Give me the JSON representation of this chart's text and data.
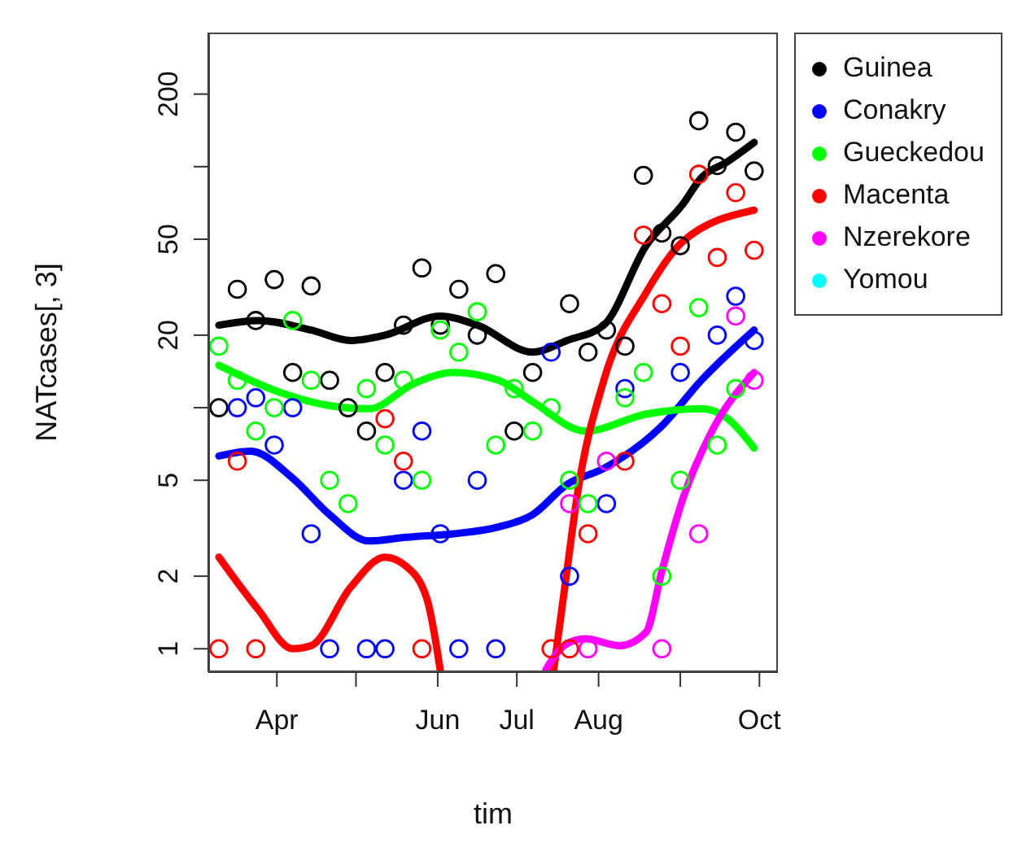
{
  "chart_data": {
    "type": "scatter",
    "xlabel": "tim",
    "ylabel": "NATcases[, 3]",
    "log": "y",
    "marker": "circle",
    "legend": "right",
    "xlim": [
      "--03-06",
      "--10-08"
    ],
    "xticks": [
      {
        "value": "--04-01",
        "label": "Apr"
      },
      {
        "value": "--05-01",
        "label": null
      },
      {
        "value": "--06-01",
        "label": "Jun"
      },
      {
        "value": "--07-01",
        "label": "Jul"
      },
      {
        "value": "--08-01",
        "label": "Aug"
      },
      {
        "value": "--09-01",
        "label": null
      },
      {
        "value": "--10-01",
        "label": "Oct"
      }
    ],
    "ylim": [
      0.8,
      360
    ],
    "yticks": [
      1,
      2,
      5,
      {
        "value": 10,
        "label": null
      },
      20,
      50,
      {
        "value": 100,
        "label": null
      },
      200
    ],
    "x": [
      "--03-10",
      "--03-17",
      "--03-24",
      "--03-31",
      "--04-07",
      "--04-14",
      "--04-21",
      "--04-28",
      "--05-05",
      "--05-12",
      "--05-19",
      "--05-26",
      "--06-02",
      "--06-09",
      "--06-16",
      "--06-23",
      "--06-30",
      "--07-07",
      "--07-14",
      "--07-21",
      "--07-28",
      "--08-04",
      "--08-11",
      "--08-18",
      "--08-25",
      "--09-01",
      "--09-08",
      "--09-15",
      "--09-22",
      "--09-29"
    ],
    "series": [
      {
        "name": "Guinea",
        "color": "#000000",
        "values": [
          10,
          31,
          23,
          34,
          14,
          32,
          13,
          10,
          8,
          14,
          22,
          38,
          22,
          31,
          20,
          36,
          8,
          14,
          null,
          27,
          17,
          21,
          18,
          92,
          53,
          47,
          155,
          101,
          139,
          96
        ]
      },
      {
        "name": "Conakry",
        "color": "#0000ff",
        "values": [
          null,
          10,
          11,
          7,
          10,
          3,
          1,
          null,
          1,
          1,
          5,
          8,
          3,
          1,
          5,
          1,
          null,
          null,
          17,
          2,
          null,
          4,
          12,
          null,
          null,
          14,
          null,
          20,
          29,
          19
        ]
      },
      {
        "name": "Gueckedou",
        "color": "#00ff00",
        "values": [
          18,
          13,
          8,
          10,
          23,
          13,
          5,
          4,
          12,
          7,
          13,
          5,
          21,
          17,
          25,
          7,
          12,
          8,
          10,
          5,
          4,
          null,
          11,
          14,
          2,
          5,
          26,
          7,
          12,
          null
        ]
      },
      {
        "name": "Macenta",
        "color": "#ff0000",
        "values": [
          1,
          6,
          1,
          null,
          null,
          null,
          null,
          null,
          null,
          9,
          6,
          1,
          null,
          null,
          null,
          null,
          null,
          null,
          1,
          1,
          3,
          null,
          6,
          52,
          27,
          18,
          93,
          42,
          78,
          45
        ]
      },
      {
        "name": "Nzerekore",
        "color": "#ff00ff",
        "values": [
          null,
          null,
          null,
          null,
          null,
          null,
          null,
          null,
          null,
          null,
          null,
          null,
          null,
          null,
          null,
          null,
          null,
          null,
          null,
          4,
          1,
          6,
          null,
          null,
          1,
          null,
          3,
          null,
          24,
          13
        ]
      },
      {
        "name": "Yomou",
        "color": "#00ffff",
        "values": [
          null,
          null,
          null,
          null,
          null,
          null,
          null,
          null,
          null,
          null,
          null,
          null,
          null,
          null,
          null,
          null,
          null,
          null,
          null,
          null,
          null,
          null,
          null,
          null,
          null,
          null,
          null,
          null,
          null,
          null
        ]
      },
      {
        "type": "line",
        "marker": "none",
        "color": "#000000",
        "x": [
          "--03-10",
          "--03-25",
          "--04-14",
          "--04-29",
          "--05-12",
          "--06-02",
          "--06-16",
          "--07-07",
          "--07-20",
          "--08-03",
          "--08-19",
          "--09-02",
          "--09-09",
          "--09-19",
          "--09-29"
        ],
        "values": [
          22,
          23,
          21,
          19,
          20,
          24,
          22,
          17,
          19,
          22,
          47,
          70,
          90,
          105,
          126
        ]
      },
      {
        "type": "line",
        "marker": "none",
        "color": "#0000ff",
        "x": [
          "--03-10",
          "--03-22",
          "--04-07",
          "--04-21",
          "--05-06",
          "--05-20",
          "--06-07",
          "--06-24",
          "--07-07",
          "--07-20",
          "--08-03",
          "--08-25",
          "--09-09",
          "--09-29"
        ],
        "values": [
          6.3,
          6.6,
          5.1,
          3.6,
          2.8,
          2.9,
          3,
          3.2,
          3.6,
          4.8,
          5.6,
          8.4,
          13,
          21
        ]
      },
      {
        "type": "line",
        "marker": "none",
        "color": "#00ff00",
        "x": [
          "--03-10",
          "--04-02",
          "--04-21",
          "--05-06",
          "--05-23",
          "--06-07",
          "--06-24",
          "--07-07",
          "--07-27",
          "--08-19",
          "--09-09",
          "--09-19",
          "--09-29"
        ],
        "values": [
          15,
          11.6,
          10.2,
          9.9,
          12.6,
          14,
          13,
          10.6,
          8,
          9.4,
          9.9,
          9,
          6.8
        ]
      },
      {
        "type": "line",
        "marker": "none",
        "color": "#ff0000",
        "x": [
          "--03-10",
          "--03-25",
          "--04-07",
          "--04-14",
          "--04-29",
          "--05-12",
          "--05-20",
          "--05-28",
          "--06-02",
          "--07-01",
          "--07-15",
          "--07-20",
          "--07-24",
          "--08-03",
          "--08-19",
          "--09-02",
          "--09-29"
        ],
        "values": [
          2.4,
          1.45,
          1.0,
          1.03,
          1.8,
          2.4,
          2.2,
          1.6,
          0.81,
          null,
          0.82,
          2.1,
          4.4,
          13,
          30,
          49,
          66
        ]
      },
      {
        "type": "line",
        "marker": "none",
        "color": "#ff00ff",
        "x": [
          "--07-12",
          "--07-20",
          "--07-27",
          "--08-09",
          "--08-19",
          "--08-25",
          "--09-02",
          "--09-13",
          "--09-29"
        ],
        "values": [
          0.82,
          1.05,
          1.1,
          1.03,
          1.17,
          2.1,
          4.2,
          8,
          14
        ]
      }
    ]
  }
}
